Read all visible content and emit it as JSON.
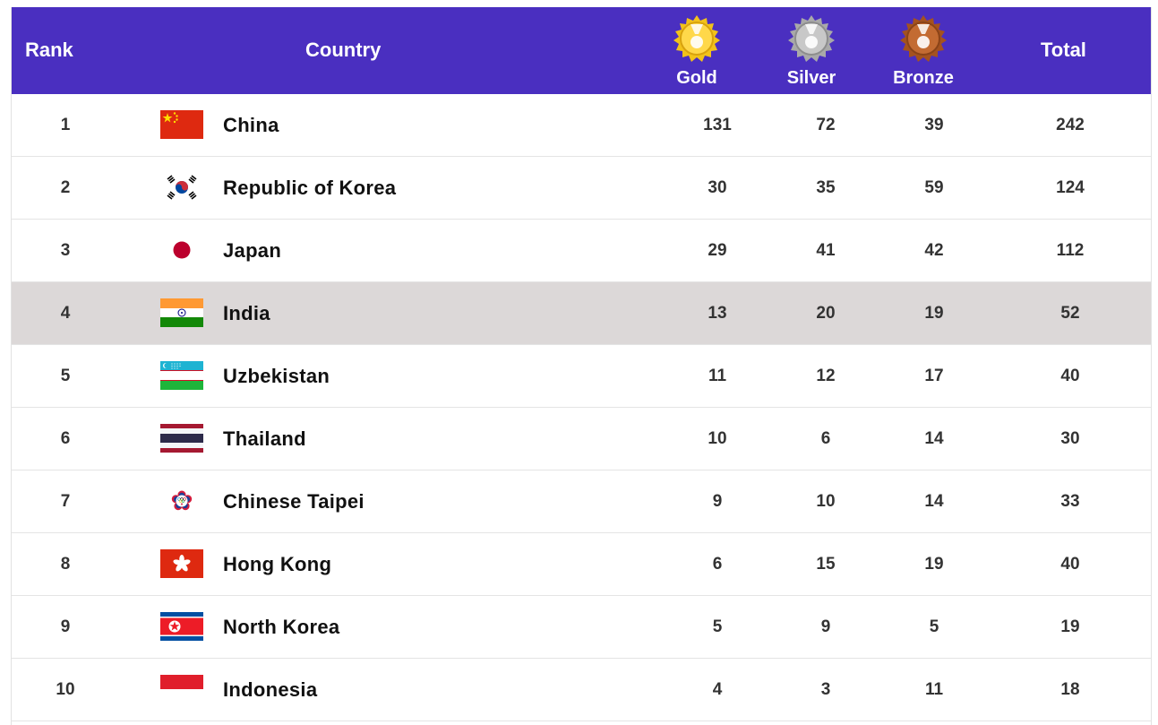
{
  "header": {
    "rank": "Rank",
    "country": "Country",
    "gold": "Gold",
    "silver": "Silver",
    "bronze": "Bronze",
    "total": "Total"
  },
  "colors": {
    "header_bg": "#4a2fc0",
    "highlight_row": "#dcd8d8",
    "gold": "#f2c21a",
    "silver": "#b3b3b3",
    "bronze": "#b5602a"
  },
  "rows": [
    {
      "rank": "1",
      "country": "China",
      "gold": "131",
      "silver": "72",
      "bronze": "39",
      "total": "242",
      "flag": "china-flag-icon"
    },
    {
      "rank": "2",
      "country": "Republic of Korea",
      "gold": "30",
      "silver": "35",
      "bronze": "59",
      "total": "124",
      "flag": "korea-flag-icon"
    },
    {
      "rank": "3",
      "country": "Japan",
      "gold": "29",
      "silver": "41",
      "bronze": "42",
      "total": "112",
      "flag": "japan-flag-icon"
    },
    {
      "rank": "4",
      "country": "India",
      "gold": "13",
      "silver": "20",
      "bronze": "19",
      "total": "52",
      "flag": "india-flag-icon",
      "highlighted": true
    },
    {
      "rank": "5",
      "country": "Uzbekistan",
      "gold": "11",
      "silver": "12",
      "bronze": "17",
      "total": "40",
      "flag": "uzbekistan-flag-icon"
    },
    {
      "rank": "6",
      "country": "Thailand",
      "gold": "10",
      "silver": "6",
      "bronze": "14",
      "total": "30",
      "flag": "thailand-flag-icon"
    },
    {
      "rank": "7",
      "country": "Chinese Taipei",
      "gold": "9",
      "silver": "10",
      "bronze": "14",
      "total": "33",
      "flag": "chinese-taipei-flag-icon"
    },
    {
      "rank": "8",
      "country": "Hong Kong",
      "gold": "6",
      "silver": "15",
      "bronze": "19",
      "total": "40",
      "flag": "hong-kong-flag-icon"
    },
    {
      "rank": "9",
      "country": "North Korea",
      "gold": "5",
      "silver": "9",
      "bronze": "5",
      "total": "19",
      "flag": "north-korea-flag-icon"
    },
    {
      "rank": "10",
      "country": "Indonesia",
      "gold": "4",
      "silver": "3",
      "bronze": "11",
      "total": "18",
      "flag": "indonesia-flag-icon"
    }
  ]
}
